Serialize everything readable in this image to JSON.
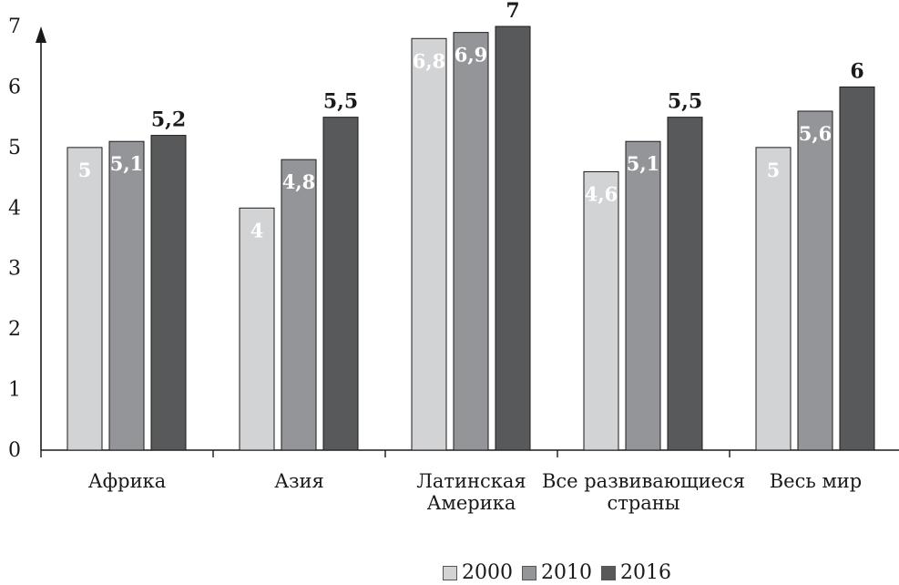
{
  "chart_data": {
    "type": "bar",
    "categories": [
      [
        "Африка"
      ],
      [
        "Азия"
      ],
      [
        "Латинская",
        "Америка"
      ],
      [
        "Все развивающиеся",
        "страны"
      ],
      [
        "Весь мир"
      ]
    ],
    "series": [
      {
        "name": "2000",
        "color": "#d2d3d5",
        "values": [
          5,
          4,
          6.8,
          4.6,
          5
        ],
        "labels": [
          "5",
          "4",
          "6,8",
          "4,6",
          "5"
        ]
      },
      {
        "name": "2010",
        "color": "#939598",
        "values": [
          5.1,
          4.8,
          6.9,
          5.1,
          5.6
        ],
        "labels": [
          "5,1",
          "4,8",
          "6,9",
          "5,1",
          "5,6"
        ]
      },
      {
        "name": "2016",
        "color": "#58595b",
        "values": [
          5.2,
          5.5,
          7,
          5.5,
          6
        ],
        "labels": [
          "5,2",
          "5,5",
          "7",
          "5,5",
          "6"
        ]
      }
    ],
    "ylim": [
      0,
      7
    ],
    "yticks": [
      "0",
      "1",
      "2",
      "3",
      "4",
      "5",
      "6",
      "7"
    ],
    "grid": false,
    "legend_position": "bottom-right"
  }
}
